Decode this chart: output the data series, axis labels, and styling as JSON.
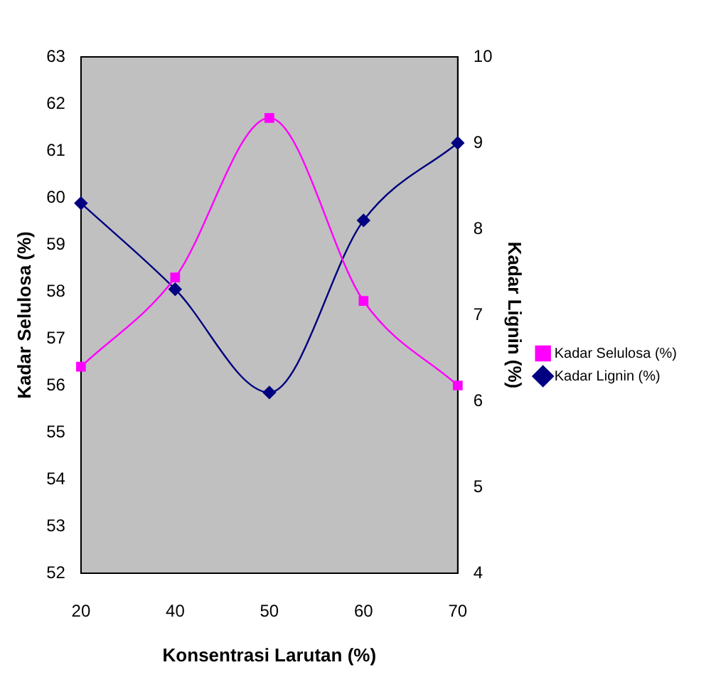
{
  "chart_data": {
    "type": "line",
    "xlabel": "Konsentrasi Larutan (%)",
    "ylabel": "Kadar Selulosa (%)",
    "y2label": "Kadar Lignin (%)",
    "categories": [
      "20",
      "40",
      "50",
      "60",
      "70"
    ],
    "series": [
      {
        "name": "Kadar Selulosa (%)",
        "color": "#ff00ff",
        "marker": "square",
        "values": [
          56.4,
          58.3,
          61.7,
          57.8,
          56.0
        ]
      },
      {
        "name": "Kadar Lignin (%)",
        "color": "#000080",
        "marker": "diamond",
        "axis": "y2",
        "values": [
          8.3,
          7.3,
          6.1,
          8.1,
          9.0
        ]
      }
    ],
    "ylim": [
      52,
      63
    ],
    "yticks": [
      52,
      53,
      54,
      55,
      56,
      57,
      58,
      59,
      60,
      61,
      62,
      63
    ],
    "y2lim": [
      4,
      10
    ],
    "y2ticks": [
      4,
      5,
      6,
      7,
      8,
      9,
      10
    ],
    "grid": false,
    "legend": "right",
    "line_style": "solid"
  }
}
